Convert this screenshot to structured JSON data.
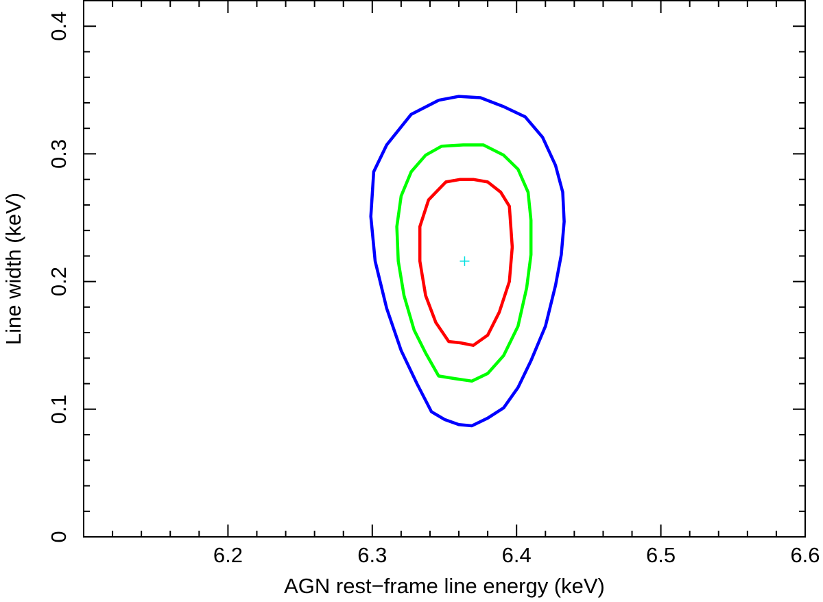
{
  "chart_data": {
    "type": "contour",
    "xlabel": "AGN rest−frame line energy (keV)",
    "ylabel": "Line width (keV)",
    "xlim": [
      6.1,
      6.6
    ],
    "ylim": [
      0,
      0.42
    ],
    "xticks": [
      6.2,
      6.3,
      6.4,
      6.5,
      6.6
    ],
    "yticks": [
      0,
      0.1,
      0.2,
      0.3,
      0.4
    ],
    "xminorticks": [
      6.12,
      6.14,
      6.16,
      6.18,
      6.22,
      6.24,
      6.26,
      6.28,
      6.32,
      6.34,
      6.36,
      6.38,
      6.42,
      6.44,
      6.46,
      6.48,
      6.52,
      6.54,
      6.56,
      6.58
    ],
    "yminorticks": [
      0.02,
      0.04,
      0.06,
      0.08,
      0.12,
      0.14,
      0.16,
      0.18,
      0.22,
      0.24,
      0.26,
      0.28,
      0.32,
      0.34,
      0.36,
      0.38,
      0.42
    ],
    "series": [
      {
        "color": "#0000ff",
        "x": [
          6.36,
          6.346,
          6.327,
          6.31,
          6.301,
          6.299,
          6.302,
          6.31,
          6.32,
          6.331,
          6.341,
          6.35,
          6.36,
          6.369,
          6.38,
          6.391,
          6.401,
          6.41,
          6.42,
          6.427,
          6.431,
          6.433,
          6.432,
          6.427,
          6.418,
          6.406,
          6.391,
          6.375
        ],
        "values": [
          0.345,
          0.342,
          0.331,
          0.307,
          0.286,
          0.251,
          0.216,
          0.179,
          0.146,
          0.12,
          0.098,
          0.092,
          0.088,
          0.087,
          0.093,
          0.101,
          0.117,
          0.138,
          0.165,
          0.197,
          0.221,
          0.247,
          0.27,
          0.291,
          0.313,
          0.329,
          0.337,
          0.344
        ]
      },
      {
        "color": "#00ff00",
        "x": [
          6.363,
          6.348,
          6.337,
          6.327,
          6.32,
          6.317,
          6.318,
          6.322,
          6.329,
          6.337,
          6.346,
          6.357,
          6.369,
          6.38,
          6.391,
          6.401,
          6.407,
          6.41,
          6.41,
          6.408,
          6.401,
          6.391,
          6.377
        ],
        "values": [
          0.307,
          0.306,
          0.299,
          0.286,
          0.267,
          0.243,
          0.216,
          0.189,
          0.162,
          0.144,
          0.126,
          0.124,
          0.122,
          0.128,
          0.142,
          0.165,
          0.195,
          0.221,
          0.248,
          0.27,
          0.288,
          0.299,
          0.307
        ]
      },
      {
        "color": "#ff0000",
        "x": [
          6.361,
          6.351,
          6.339,
          6.333,
          6.333,
          6.337,
          6.344,
          6.353,
          6.361,
          6.37,
          6.38,
          6.388,
          6.395,
          6.397,
          6.395,
          6.389,
          6.38,
          6.37
        ],
        "values": [
          0.28,
          0.278,
          0.264,
          0.243,
          0.216,
          0.189,
          0.168,
          0.153,
          0.152,
          0.15,
          0.158,
          0.176,
          0.2,
          0.227,
          0.259,
          0.27,
          0.278,
          0.28
        ]
      }
    ],
    "best_fit": {
      "x": 6.364,
      "y": 0.216,
      "color": "#00e0e0"
    }
  }
}
